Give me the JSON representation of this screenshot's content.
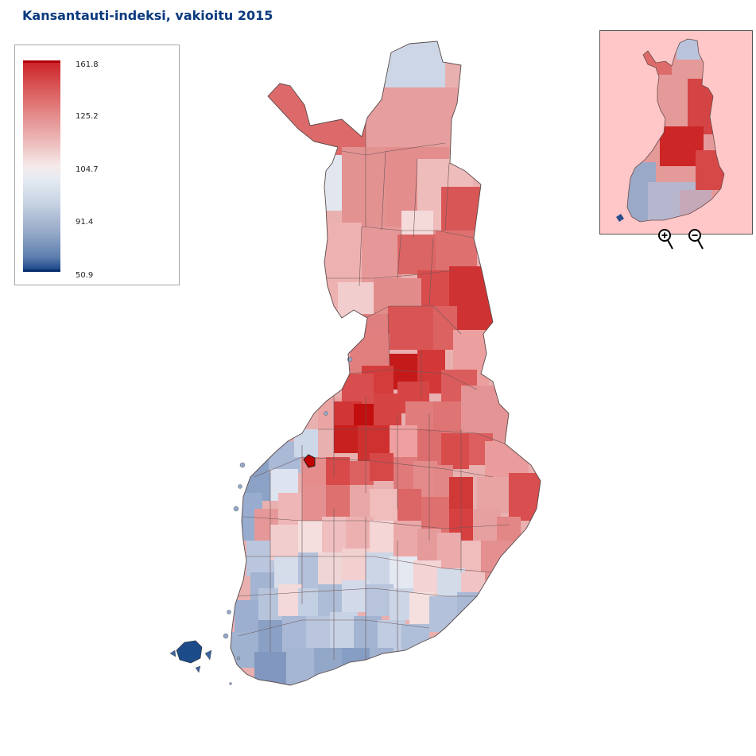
{
  "title": "Kansantauti-indeksi, vakioitu 2015",
  "legend": {
    "labels": [
      "161.8",
      "125.2",
      "104.7",
      "91.4",
      "50.9"
    ],
    "colors": {
      "max": "#b3000b",
      "high": "#d95454",
      "mid": "#f6eaea",
      "low": "#c6d1e2",
      "min": "#0a2f6e"
    }
  },
  "overview": {
    "background": "#ffc7c7"
  },
  "controls": {
    "zoom_in": "zoom-in-icon",
    "zoom_out": "zoom-out-icon"
  }
}
